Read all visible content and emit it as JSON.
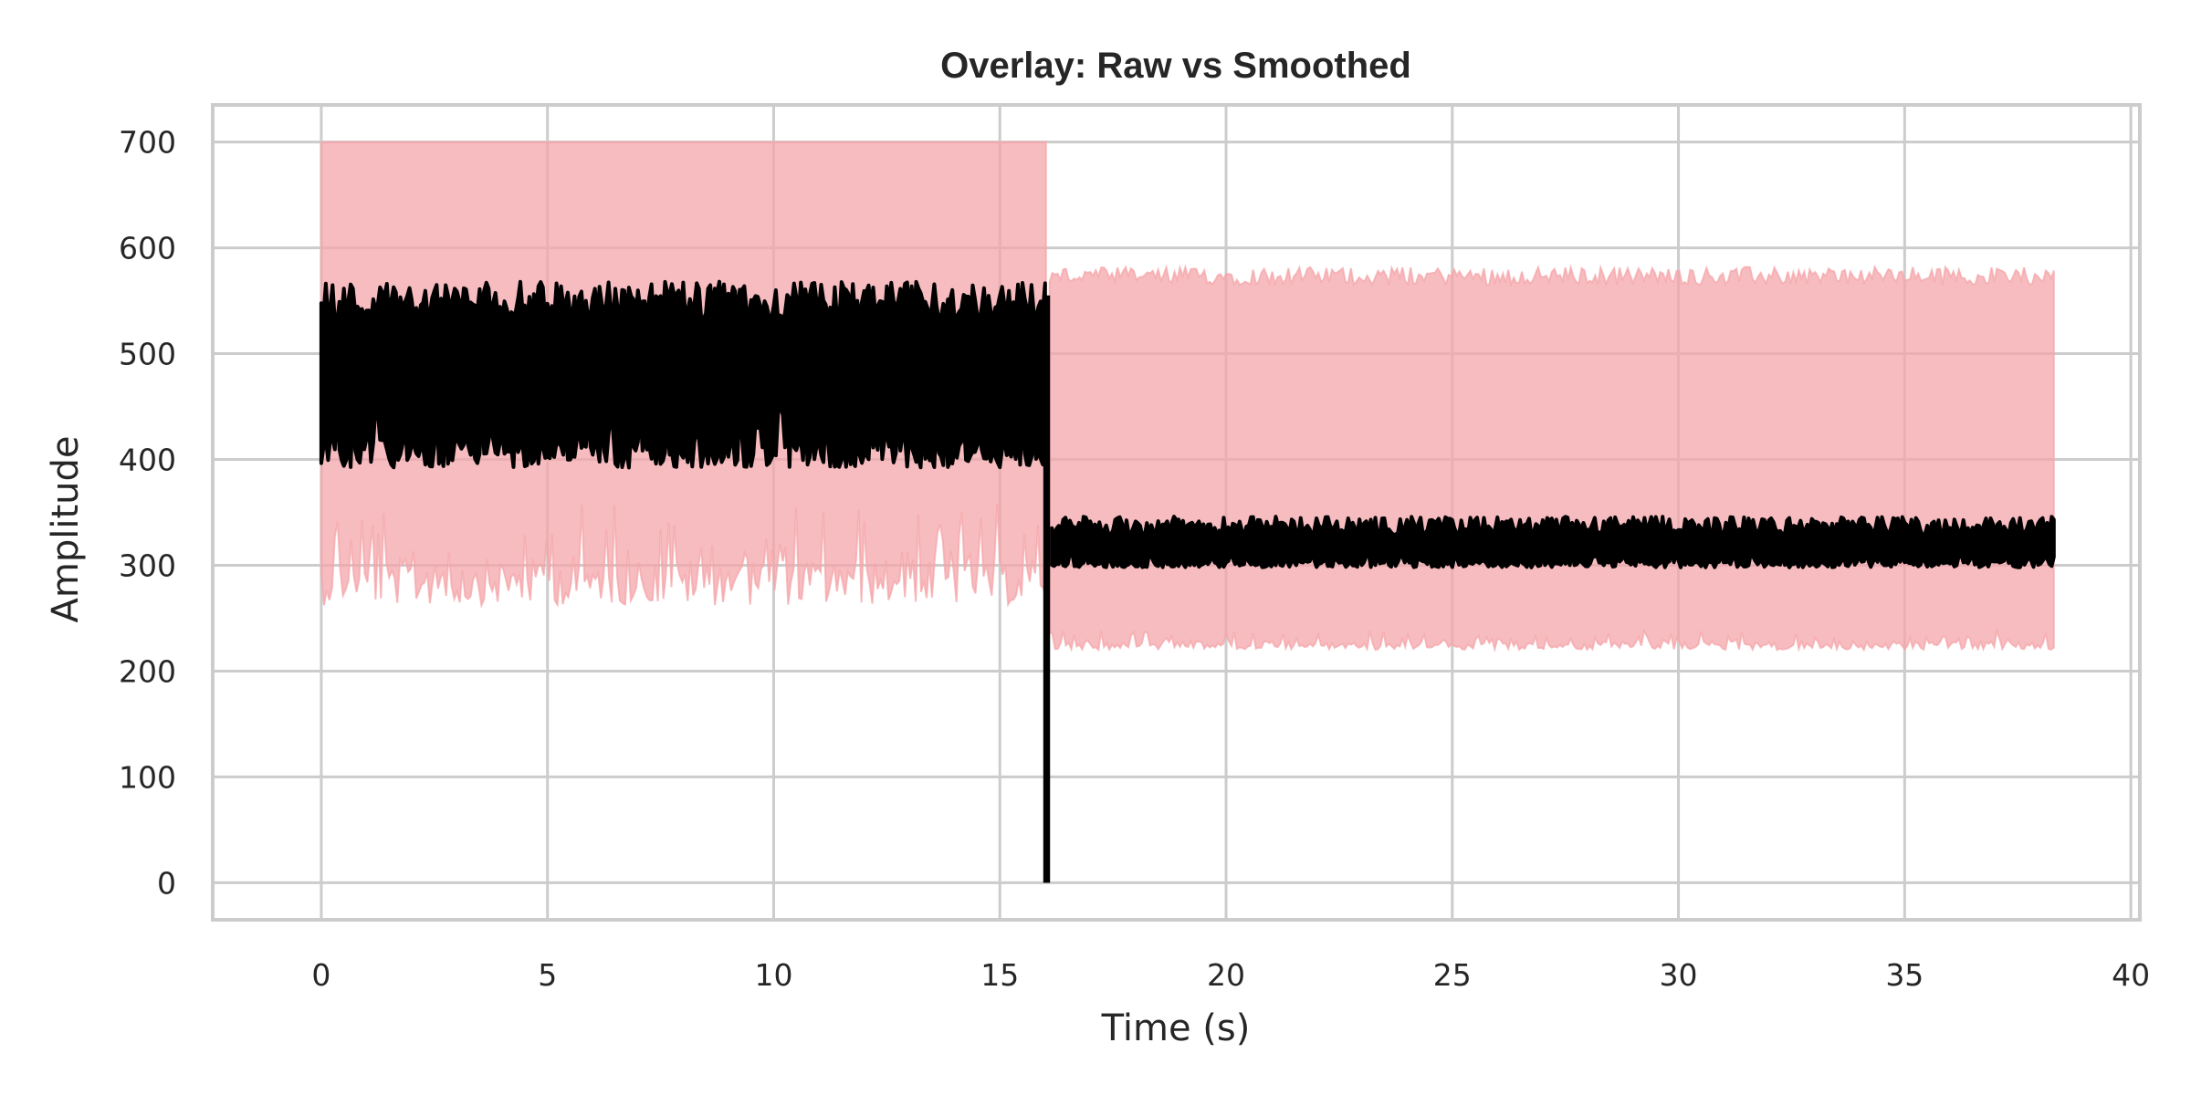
{
  "chart_data": {
    "type": "line",
    "title": "Overlay: Raw vs Smoothed",
    "xlabel": "Time (s)",
    "ylabel": "Amplitude",
    "xlim": [
      -2.4,
      40.2
    ],
    "ylim": [
      -35,
      735
    ],
    "xticks": [
      0,
      5,
      10,
      15,
      20,
      25,
      30,
      35,
      40
    ],
    "yticks": [
      0,
      100,
      200,
      300,
      400,
      500,
      600,
      700
    ],
    "grid": true,
    "legend": "none",
    "series": [
      {
        "role": "raw",
        "color": "#f4a6aa",
        "opacity": 0.75,
        "segments": [
          {
            "t_start": 0.0,
            "t_end": 16.05,
            "upper": 700,
            "lower_min": 262,
            "lower_max": 360
          },
          {
            "t_start": 16.1,
            "t_end": 38.3,
            "upper_min": 565,
            "upper_max": 582,
            "lower_min": 220,
            "lower_max": 238
          }
        ]
      },
      {
        "role": "smoothed",
        "color": "#000000",
        "segments": [
          {
            "t_start": 0.0,
            "t_end": 16.0,
            "lower_min": 392,
            "lower_max": 452,
            "upper_min": 530,
            "upper_max": 568
          },
          {
            "t_start": 16.0,
            "t_end": 16.15,
            "min": 0,
            "max": 555
          },
          {
            "t_start": 16.15,
            "t_end": 38.3,
            "lower_min": 298,
            "lower_max": 312,
            "upper_min": 328,
            "upper_max": 346
          }
        ]
      }
    ]
  }
}
